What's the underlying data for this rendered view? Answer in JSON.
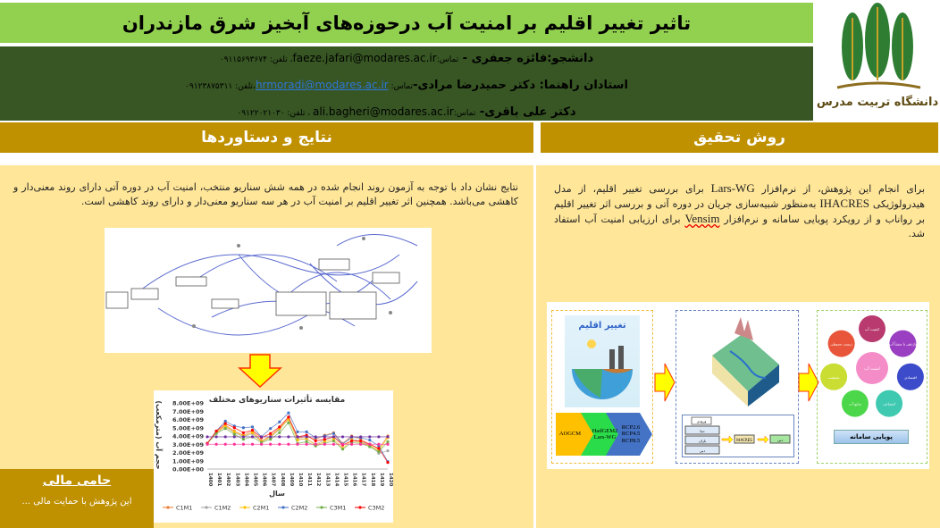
{
  "header": {
    "title": "تاثیر تغییر اقلیم بر امنیت آب درحوزه‌های آبخیز شرق مازندران",
    "logo_text": "دانشگاه تربیت مدرس"
  },
  "authors": [
    {
      "role_name": "دانشجو:فائزه جعفری - ",
      "contact_label": "تماس:",
      "email": "faeze.jafari@modares.ac.ir",
      "phone_label": "، تلفن: ",
      "phone": "۰۹۱۱۵۶۹۳۶۷۴"
    },
    {
      "role_name": "استادان راهنما: دکتر حمیدرضا مرادی-",
      "contact_label": "تماس: ",
      "email": "hrmoradi@modares.ac.ir",
      "phone_label": "،تلفن: ",
      "phone": "۰۹۱۲۳۸۷۵۳۱۱"
    },
    {
      "role_name": "دکتر علی باقری- ",
      "contact_label": "تماس:",
      "email": "ali.bagheri@modares.ac.ir",
      "phone_label": " ، تلفن: ",
      "phone": "۰۹۱۲۲۰۲۱۰۳۰"
    }
  ],
  "results": {
    "heading": "نتایج و دستاوردها",
    "text": "نتایج نشان داد با توجه به آزمون روند انجام شده در همه شش سناریو منتخب، امنیت آب در دوره آتی دارای روند معنی‌دار و کاهشی می‌باشد. همچنین اثر تغییر اقلیم بر امنیت آب در هر سه سناریو معنی‌دار و دارای روند کاهشی است."
  },
  "method": {
    "heading": "روش تحقیق",
    "text_parts": [
      "برای انجام این پژوهش، از نرم‌افزار ",
      "Lars-WG",
      " برای بررسی تغییر اقلیم، از مدل هیدرولوژیکی ",
      "IHACRES",
      " به‌منظور شبیه‌سازی جریان در دوره آتی و بررسی اثر تغییر اقلیم بر رواناب و از رویکرد پویایی سامانه و نرم‌افزار ",
      "Vensim",
      " برای ارزیابی امنیت آب استفاد شد."
    ],
    "figure": {
      "climate_title": "تغییر اقلیم",
      "chevrons": [
        "AOGCM",
        "HadGEM2 Lars-WG",
        "RCP2.6 RCP4.5 RCP8.5"
      ],
      "model_inputs_header": "ورودی",
      "model_inputs": [
        "دما",
        "باران",
        "دبی"
      ],
      "model_name": "IHACRES",
      "model_output": "دبی",
      "circles": [
        "کیفیت آب",
        "بازدهی با منشأ آب",
        "اقتصادی",
        "اجتماعی",
        "منابع آب",
        "معیشت",
        "زیست محیطی"
      ],
      "center_circle": "امنیت آب",
      "system_dynamics_label": "پویایی سامانه"
    }
  },
  "sponsor": {
    "heading": "حامی مالی",
    "text": "این پژوهش با حمایت مالی ..."
  },
  "colors": {
    "title_bar": "#92d050",
    "author_band": "#375623",
    "section_head": "#bf9000",
    "panel_bg": "#ffe699"
  },
  "chart_data": {
    "type": "line",
    "title": "مقایسه تأثیرات سناریوهای مختلف",
    "xlabel": "سال",
    "ylabel": "حجم آب (مترمکعب)",
    "categories": [
      "1400",
      "1401",
      "1402",
      "1403",
      "1404",
      "1405",
      "1406",
      "1407",
      "1408",
      "1409",
      "1410",
      "1411",
      "1412",
      "1413",
      "1414",
      "1415",
      "1416",
      "1417",
      "1418",
      "1419",
      "1420"
    ],
    "ylim": [
      0,
      8000000000.0
    ],
    "yticks": [
      "0.00E+00",
      "1.00E+09",
      "2.00E+09",
      "3.00E+09",
      "4.00E+09",
      "5.00E+09",
      "6.00E+09",
      "7.00E+09",
      "8.00E+09"
    ],
    "legend_position": "bottom",
    "series": [
      {
        "name": "C1M1",
        "color": "#ed7d31",
        "values": [
          3100000000.0,
          4500000000.0,
          5300000000.0,
          4600000000.0,
          4100000000.0,
          4600000000.0,
          3400000000.0,
          4000000000.0,
          5000000000.0,
          6200000000.0,
          3800000000.0,
          3900000000.0,
          3600000000.0,
          4100000000.0,
          4400000000.0,
          3100000000.0,
          4000000000.0,
          3600000000.0,
          3000000000.0,
          2400000000.0,
          4000000000.0
        ]
      },
      {
        "name": "C1M2",
        "color": "#a5a5a5",
        "values": [
          3100000000.0,
          4400000000.0,
          5100000000.0,
          4400000000.0,
          3900000000.0,
          4300000000.0,
          3300000000.0,
          3800000000.0,
          4800000000.0,
          6000000000.0,
          3700000000.0,
          3600000000.0,
          3000000000.0,
          3500000000.0,
          3900000000.0,
          3100000000.0,
          3700000000.0,
          3300000000.0,
          2900000000.0,
          1900000000.0,
          2200000000.0
        ]
      },
      {
        "name": "C2M1",
        "color": "#ffc000",
        "values": [
          3100000000.0,
          4400000000.0,
          5200000000.0,
          4500000000.0,
          4000000000.0,
          4400000000.0,
          3300000000.0,
          3900000000.0,
          4900000000.0,
          6000000000.0,
          3500000000.0,
          3700000000.0,
          2900000000.0,
          3300000000.0,
          3600000000.0,
          2500000000.0,
          3500000000.0,
          3200000000.0,
          2800000000.0,
          2200000000.0,
          3800000000.0
        ]
      },
      {
        "name": "C2M2",
        "color": "#4472c4",
        "values": [
          3100000000.0,
          4600000000.0,
          5800000000.0,
          5200000000.0,
          5000000000.0,
          5100000000.0,
          3900000000.0,
          4900000000.0,
          5700000000.0,
          6800000000.0,
          4500000000.0,
          4500000000.0,
          3800000000.0,
          4000000000.0,
          4300000000.0,
          3000000000.0,
          3900000000.0,
          3800000000.0,
          3500000000.0,
          2800000000.0,
          900000000.0
        ]
      },
      {
        "name": "C3M1",
        "color": "#70ad47",
        "values": [
          3100000000.0,
          4300000000.0,
          4900000000.0,
          4200000000.0,
          3600000000.0,
          3900000000.0,
          3200000000.0,
          3600000000.0,
          4400000000.0,
          5600000000.0,
          3100000000.0,
          3300000000.0,
          2800000000.0,
          3100000000.0,
          3400000000.0,
          2400000000.0,
          3200000000.0,
          3100000000.0,
          2700000000.0,
          2100000000.0,
          3300000000.0
        ]
      },
      {
        "name": "C3M2",
        "color": "#ff0000",
        "values": [
          3100000000.0,
          4600000000.0,
          5500000000.0,
          5000000000.0,
          4400000000.0,
          4700000000.0,
          3800000000.0,
          4300000000.0,
          5100000000.0,
          6300000000.0,
          3900000000.0,
          4100000000.0,
          3400000000.0,
          3600000000.0,
          3900000000.0,
          2900000000.0,
          3400000000.0,
          3400000000.0,
          3000000000.0,
          2500000000.0,
          800000000.0
        ]
      },
      {
        "color": "#7030a0",
        "values": [
          3900000000.0,
          3900000000.0,
          3900000000.0,
          3900000000.0,
          3900000000.0,
          3900000000.0,
          3900000000.0,
          3900000000.0,
          3900000000.0,
          3900000000.0,
          3900000000.0,
          3900000000.0,
          3900000000.0,
          3900000000.0,
          3900000000.0,
          3900000000.0,
          3900000000.0,
          3900000000.0,
          3900000000.0,
          3900000000.0,
          3900000000.0
        ]
      },
      {
        "color": "#ff3399",
        "values": [
          3000000000.0,
          3000000000.0,
          3000000000.0,
          3000000000.0,
          3000000000.0,
          3000000000.0,
          3000000000.0,
          3000000000.0,
          3000000000.0,
          3000000000.0,
          3000000000.0,
          3000000000.0,
          3000000000.0,
          3000000000.0,
          3000000000.0,
          3000000000.0,
          3000000000.0,
          3000000000.0,
          3000000000.0,
          3000000000.0,
          3000000000.0
        ]
      }
    ]
  }
}
